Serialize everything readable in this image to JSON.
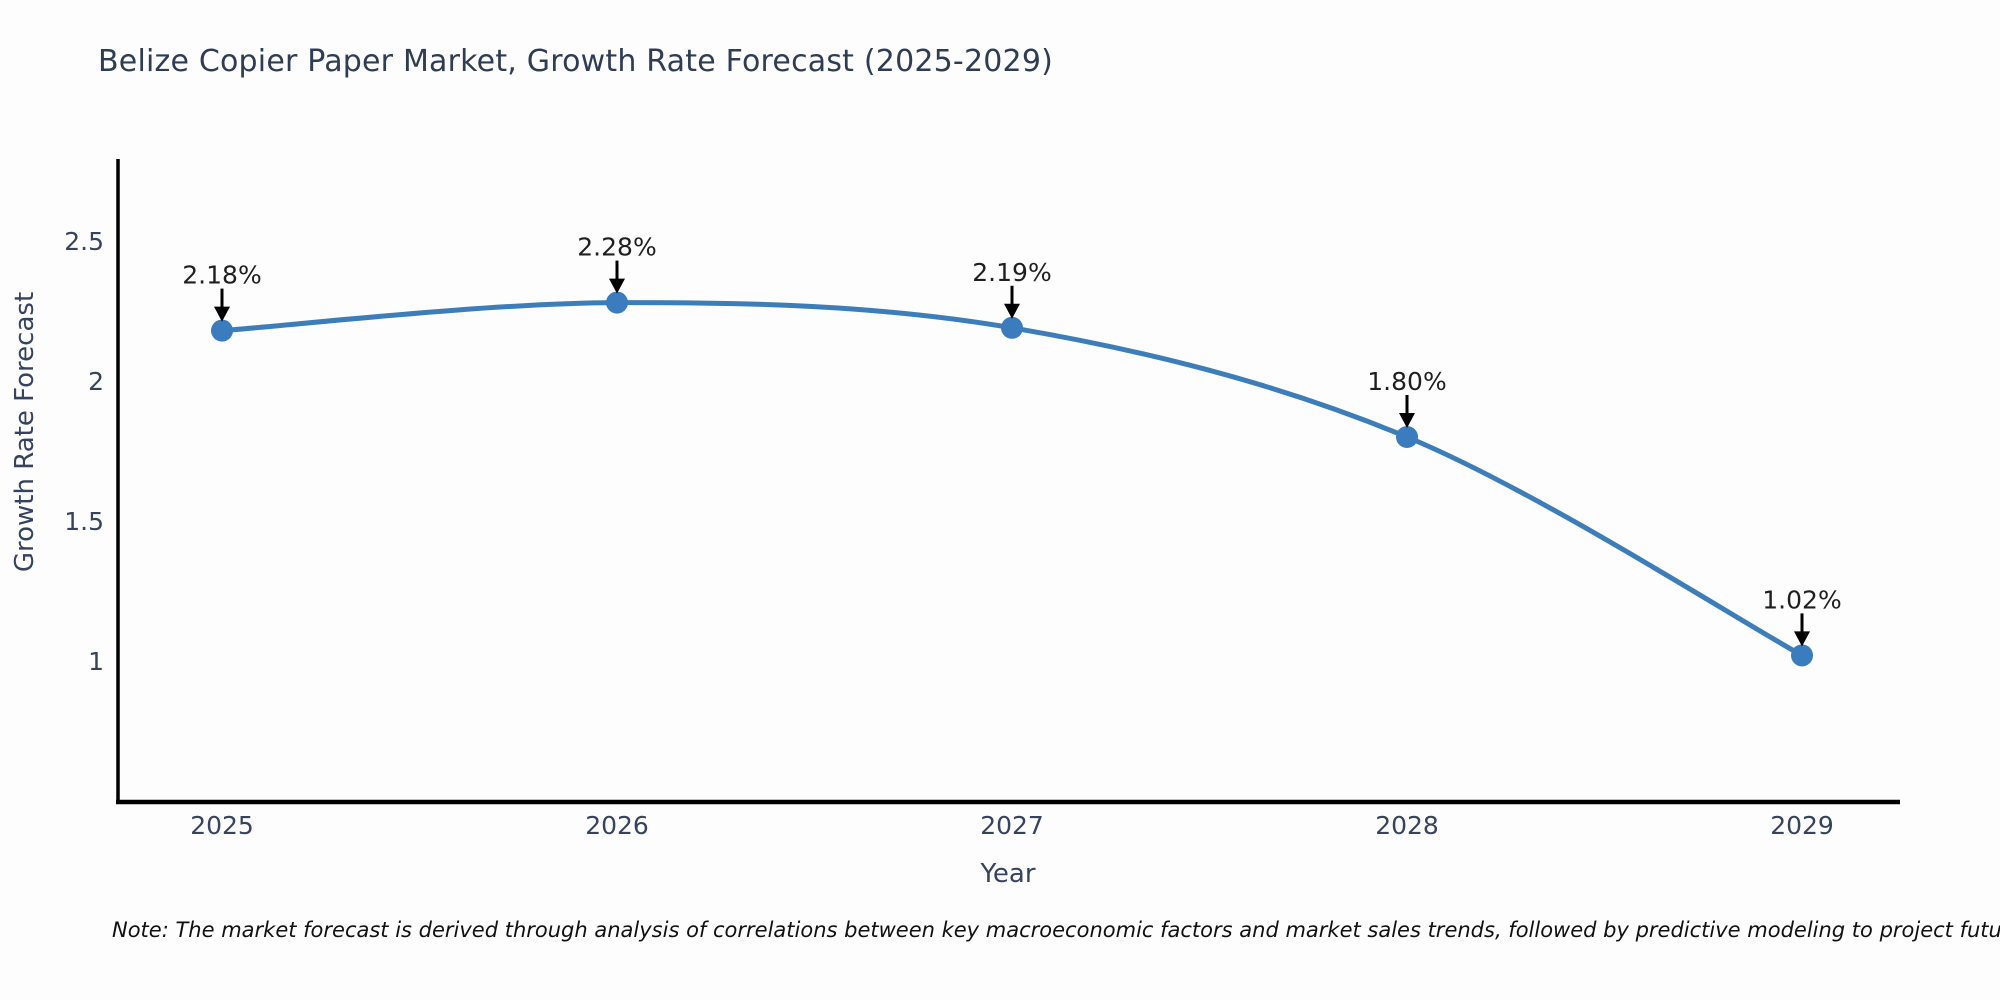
{
  "title": "Belize Copier Paper Market, Growth Rate Forecast (2025-2029)",
  "note": "Note: The market forecast is derived through analysis of correlations between key macroeconomic factors and market sales trends, followed by predictive modeling to project future sales",
  "colors": {
    "background": "#fdfdfd",
    "line": "#3d7eba",
    "marker": "#3a7cbe",
    "axis": "#000000",
    "title_text": "#2f3d54",
    "tick_text": "#36435f",
    "annotation_text": "#1f1f1f",
    "note_text": "#111111"
  },
  "chart_data": {
    "type": "line",
    "title": "Belize Copier Paper Market, Growth Rate Forecast (2025-2029)",
    "xlabel": "Year",
    "ylabel": "Growth Rate Forecast",
    "x": [
      2025,
      2026,
      2027,
      2028,
      2029
    ],
    "categories": [
      "2025",
      "2026",
      "2027",
      "2028",
      "2029"
    ],
    "series": [
      {
        "name": "Growth Rate Forecast",
        "values": [
          2.18,
          2.28,
          2.19,
          1.8,
          1.02
        ]
      }
    ],
    "annotations": [
      "2.18%",
      "2.28%",
      "2.19%",
      "1.80%",
      "1.02%"
    ],
    "yticks": [
      1,
      1.5,
      2,
      2.5
    ],
    "ytick_labels": [
      "1",
      "1.5",
      "2",
      "2.5"
    ],
    "ylim": [
      0.49,
      2.79
    ],
    "grid": false,
    "legend": false,
    "marker": "circle",
    "line_smooth": true
  }
}
